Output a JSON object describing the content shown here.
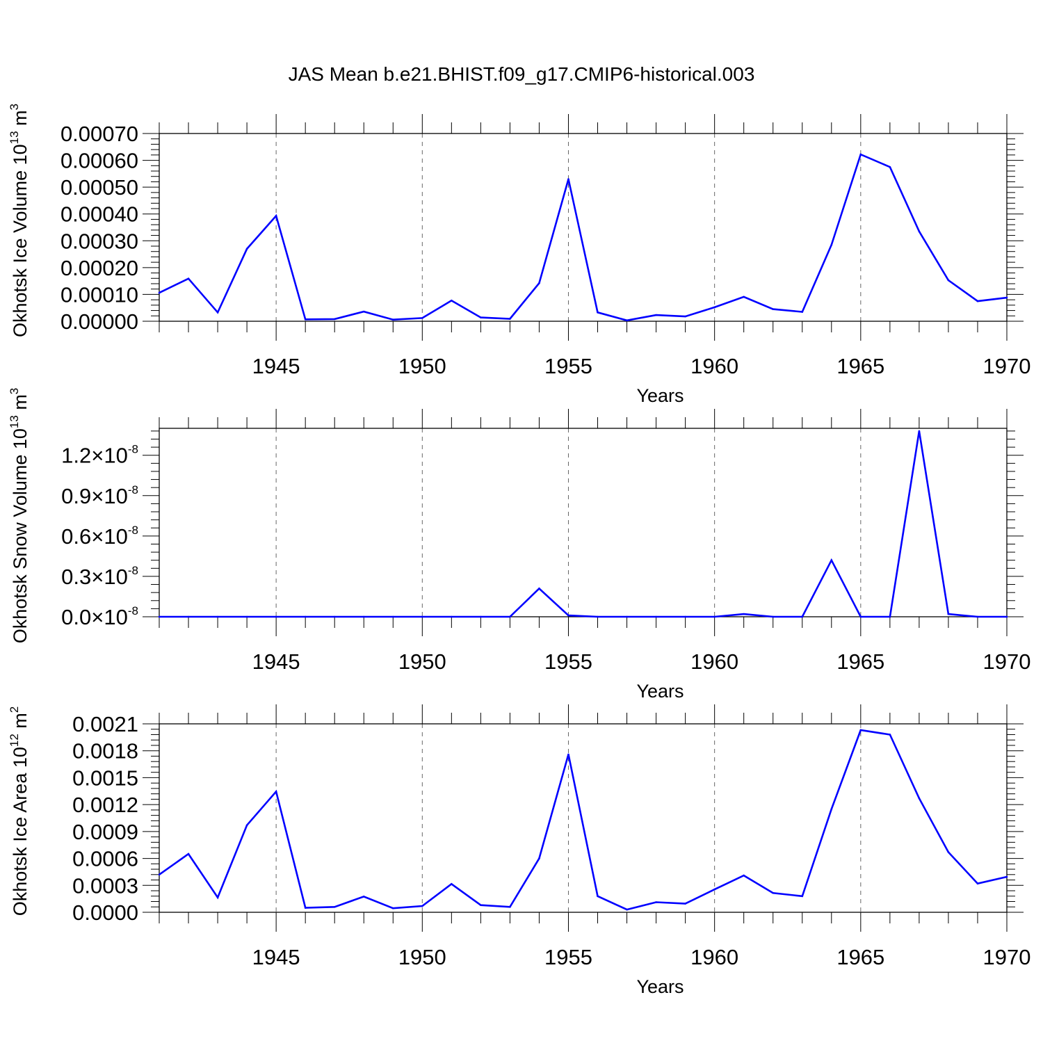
{
  "figure_title": "JAS Mean b.e21.BHIST.f09_g17.CMIP6-historical.003",
  "colors": {
    "series": "#0000ff",
    "axis": "#000000",
    "grid": "#666666"
  },
  "chart_data": [
    {
      "type": "line",
      "name": "ice-volume",
      "xlabel": "Years",
      "ylabel": {
        "text": "Okhotsk Ice Volume 10",
        "exp": "13",
        "unit": " m",
        "unit_exp": "3"
      },
      "xlim": [
        1941,
        1970
      ],
      "ylim": [
        0,
        0.0007
      ],
      "xticks": [
        1945,
        1950,
        1955,
        1960,
        1965,
        1970
      ],
      "xtick_labels": [
        "1945",
        "1950",
        "1955",
        "1960",
        "1965",
        "1970"
      ],
      "yticks": [
        0,
        0.0001,
        0.0002,
        0.0003,
        0.0004,
        0.0005,
        0.0006,
        0.0007
      ],
      "ytick_labels": [
        "0.00000",
        "0.00010",
        "0.00020",
        "0.00030",
        "0.00040",
        "0.00050",
        "0.00060",
        "0.00070"
      ],
      "ytick_format": "plain",
      "grid": "vertical dashed at major x ticks",
      "x": [
        1941,
        1942,
        1943,
        1944,
        1945,
        1946,
        1947,
        1948,
        1949,
        1950,
        1951,
        1952,
        1953,
        1954,
        1955,
        1956,
        1957,
        1958,
        1959,
        1960,
        1961,
        1962,
        1963,
        1964,
        1965,
        1966,
        1967,
        1968,
        1969,
        1970
      ],
      "series": [
        {
          "name": "Okhotsk Ice Volume",
          "values": [
            0.000106,
            0.000159,
            3.3e-05,
            0.00027,
            0.000393,
            7e-06,
            8e-06,
            3.6e-05,
            6e-06,
            1.2e-05,
            7.7e-05,
            1.4e-05,
            9e-06,
            0.000142,
            0.00053,
            3.3e-05,
            3e-06,
            2.3e-05,
            1.8e-05,
            5.2e-05,
            9.1e-05,
            4.5e-05,
            3.5e-05,
            0.000285,
            0.000622,
            0.000575,
            0.000335,
            0.000153,
            7.5e-05,
            8.8e-05
          ]
        }
      ]
    },
    {
      "type": "line",
      "name": "snow-volume",
      "xlabel": "Years",
      "ylabel": {
        "text": "Okhotsk Snow Volume 10",
        "exp": "13",
        "unit": " m",
        "unit_exp": "3"
      },
      "xlim": [
        1941,
        1970
      ],
      "ylim": [
        0,
        1.4e-08
      ],
      "xticks": [
        1945,
        1950,
        1955,
        1960,
        1965,
        1970
      ],
      "xtick_labels": [
        "1945",
        "1950",
        "1955",
        "1960",
        "1965",
        "1970"
      ],
      "yticks": [
        0,
        3e-09,
        6e-09,
        9e-09,
        1.2e-08
      ],
      "ytick_labels": [
        "0.0",
        "0.3",
        "0.6",
        "0.9",
        "1.2"
      ],
      "ytick_format": "sci",
      "ytick_mult": "×10",
      "ytick_exp": "-8",
      "grid": "vertical dashed at major x ticks",
      "x": [
        1941,
        1942,
        1943,
        1944,
        1945,
        1946,
        1947,
        1948,
        1949,
        1950,
        1951,
        1952,
        1953,
        1954,
        1955,
        1956,
        1957,
        1958,
        1959,
        1960,
        1961,
        1962,
        1963,
        1964,
        1965,
        1966,
        1967,
        1968,
        1969,
        1970
      ],
      "series": [
        {
          "name": "Okhotsk Snow Volume",
          "values": [
            0,
            0,
            0,
            0,
            0,
            0,
            0,
            0,
            0,
            0,
            0,
            0,
            0,
            2.1e-09,
            1e-10,
            0,
            0,
            0,
            0,
            0,
            2e-10,
            0,
            0,
            4.2e-09,
            0,
            0,
            1.38e-08,
            2e-10,
            0,
            0
          ]
        }
      ]
    },
    {
      "type": "line",
      "name": "ice-area",
      "xlabel": "Years",
      "ylabel": {
        "text": "Okhotsk Ice Area 10",
        "exp": "12",
        "unit": " m",
        "unit_exp": "2"
      },
      "xlim": [
        1941,
        1970
      ],
      "ylim": [
        0,
        0.0021
      ],
      "xticks": [
        1945,
        1950,
        1955,
        1960,
        1965,
        1970
      ],
      "xtick_labels": [
        "1945",
        "1950",
        "1955",
        "1960",
        "1965",
        "1970"
      ],
      "yticks": [
        0,
        0.0003,
        0.0006,
        0.0009,
        0.0012,
        0.0015,
        0.0018,
        0.0021
      ],
      "ytick_labels": [
        "0.0000",
        "0.0003",
        "0.0006",
        "0.0009",
        "0.0012",
        "0.0015",
        "0.0018",
        "0.0021"
      ],
      "ytick_format": "plain",
      "grid": "vertical dashed at major x ticks",
      "x": [
        1941,
        1942,
        1943,
        1944,
        1945,
        1946,
        1947,
        1948,
        1949,
        1950,
        1951,
        1952,
        1953,
        1954,
        1955,
        1956,
        1957,
        1958,
        1959,
        1960,
        1961,
        1962,
        1963,
        1964,
        1965,
        1966,
        1967,
        1968,
        1969,
        1970
      ],
      "series": [
        {
          "name": "Okhotsk Ice Area",
          "values": [
            0.00042,
            0.00065,
            0.000165,
            0.00097,
            0.001345,
            5e-05,
            6e-05,
            0.000175,
            4.5e-05,
            7e-05,
            0.000315,
            8e-05,
            6e-05,
            0.0006,
            0.00176,
            0.00018,
            3e-05,
            0.000112,
            9.7e-05,
            0.000255,
            0.00041,
            0.000215,
            0.00018,
            0.00115,
            0.00203,
            0.00198,
            0.00127,
            0.00067,
            0.00032,
            0.000395
          ]
        }
      ]
    }
  ]
}
